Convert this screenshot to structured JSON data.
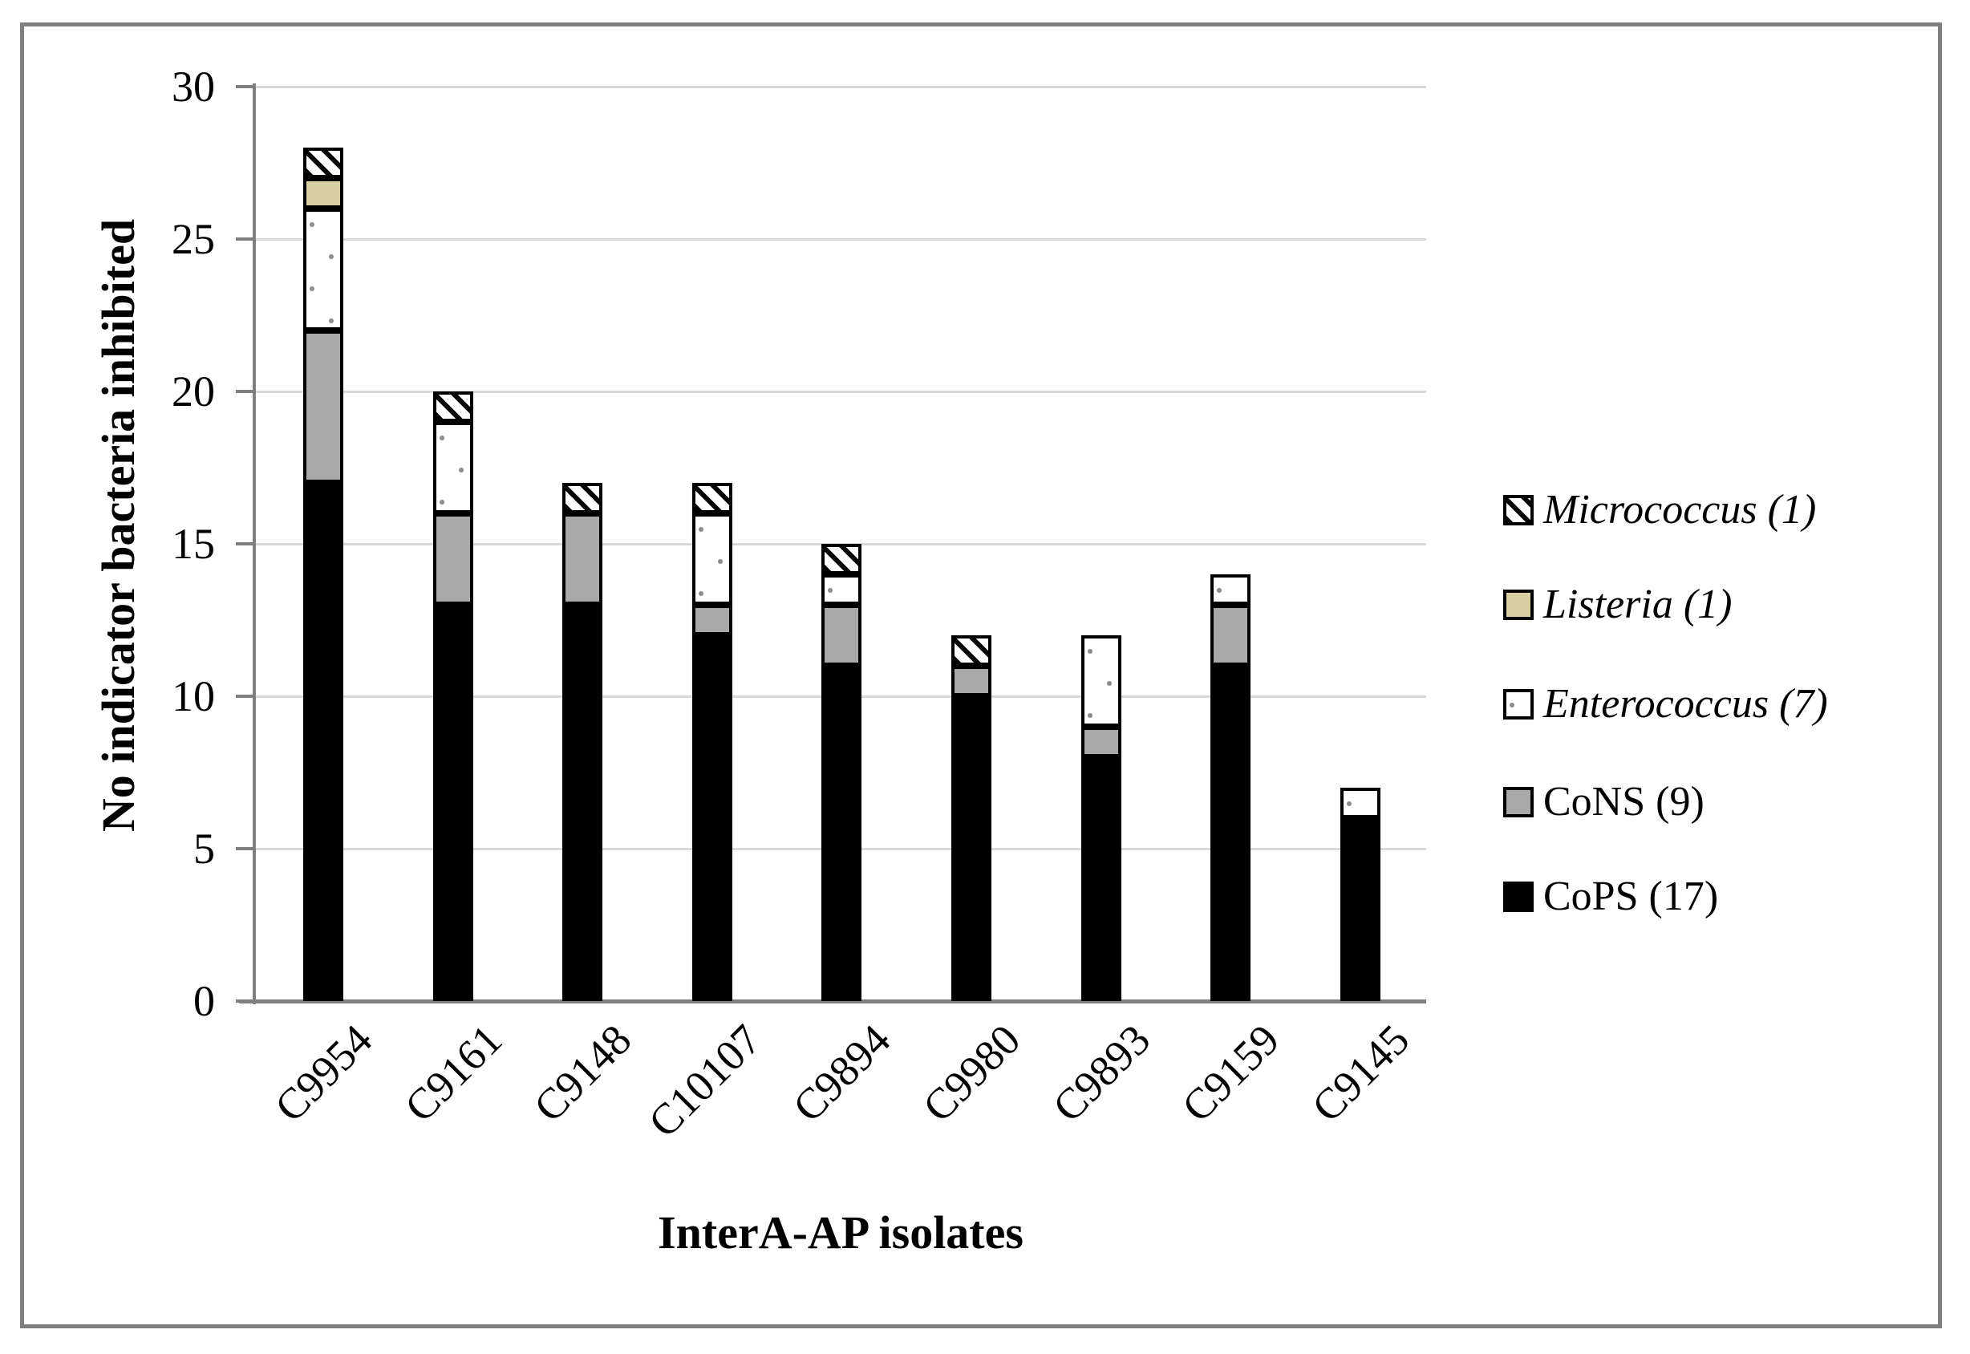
{
  "chart_data": {
    "type": "bar",
    "stacked": true,
    "title": "",
    "xlabel": "InterA-AP isolates",
    "ylabel": "No indicator bacteria inhibited",
    "categories": [
      "C9954",
      "C9161",
      "C9148",
      "C10107",
      "C9894",
      "C9980",
      "C9893",
      "C9159",
      "C9145"
    ],
    "series": [
      {
        "name": "CoPS (17)",
        "key": "cops",
        "pattern": "solid",
        "color": "#000000",
        "italic": false,
        "values": [
          17,
          13,
          13,
          12,
          11,
          10,
          8,
          11,
          6
        ]
      },
      {
        "name": "CoNS (9)",
        "key": "cons",
        "pattern": "solid",
        "color": "#a9a9a9",
        "italic": false,
        "values": [
          5,
          3,
          3,
          1,
          2,
          1,
          1,
          2,
          0
        ]
      },
      {
        "name": "Enterococcus (7)",
        "key": "enterococcus",
        "pattern": "dots",
        "color": "#ffffff",
        "italic": true,
        "values": [
          4,
          3,
          0,
          3,
          1,
          0,
          3,
          1,
          1
        ]
      },
      {
        "name": "Listeria (1)",
        "key": "listeria",
        "pattern": "solid",
        "color": "#d8d0a2",
        "italic": true,
        "values": [
          1,
          0,
          0,
          0,
          0,
          0,
          0,
          0,
          0
        ]
      },
      {
        "name": "Micrococcus (1)",
        "key": "micrococcus",
        "pattern": "hatch",
        "color": "#ffffff",
        "italic": true,
        "values": [
          1,
          1,
          1,
          1,
          1,
          1,
          0,
          0,
          0
        ]
      }
    ],
    "totals": [
      28,
      20,
      17,
      17,
      15,
      12,
      12,
      14,
      7
    ],
    "ylim": [
      0,
      30
    ],
    "yticks": [
      0,
      5,
      10,
      15,
      20,
      25,
      30
    ],
    "grid": true,
    "legend_position": "right",
    "legend_order": [
      "micrococcus",
      "listeria",
      "enterococcus",
      "cons",
      "cops"
    ],
    "colors": {
      "bar_border": "#000000",
      "axis": "#7f7f7f",
      "gridline": "#d9d9d9",
      "frame_border": "#7f7f7f",
      "text": "#000000"
    }
  }
}
